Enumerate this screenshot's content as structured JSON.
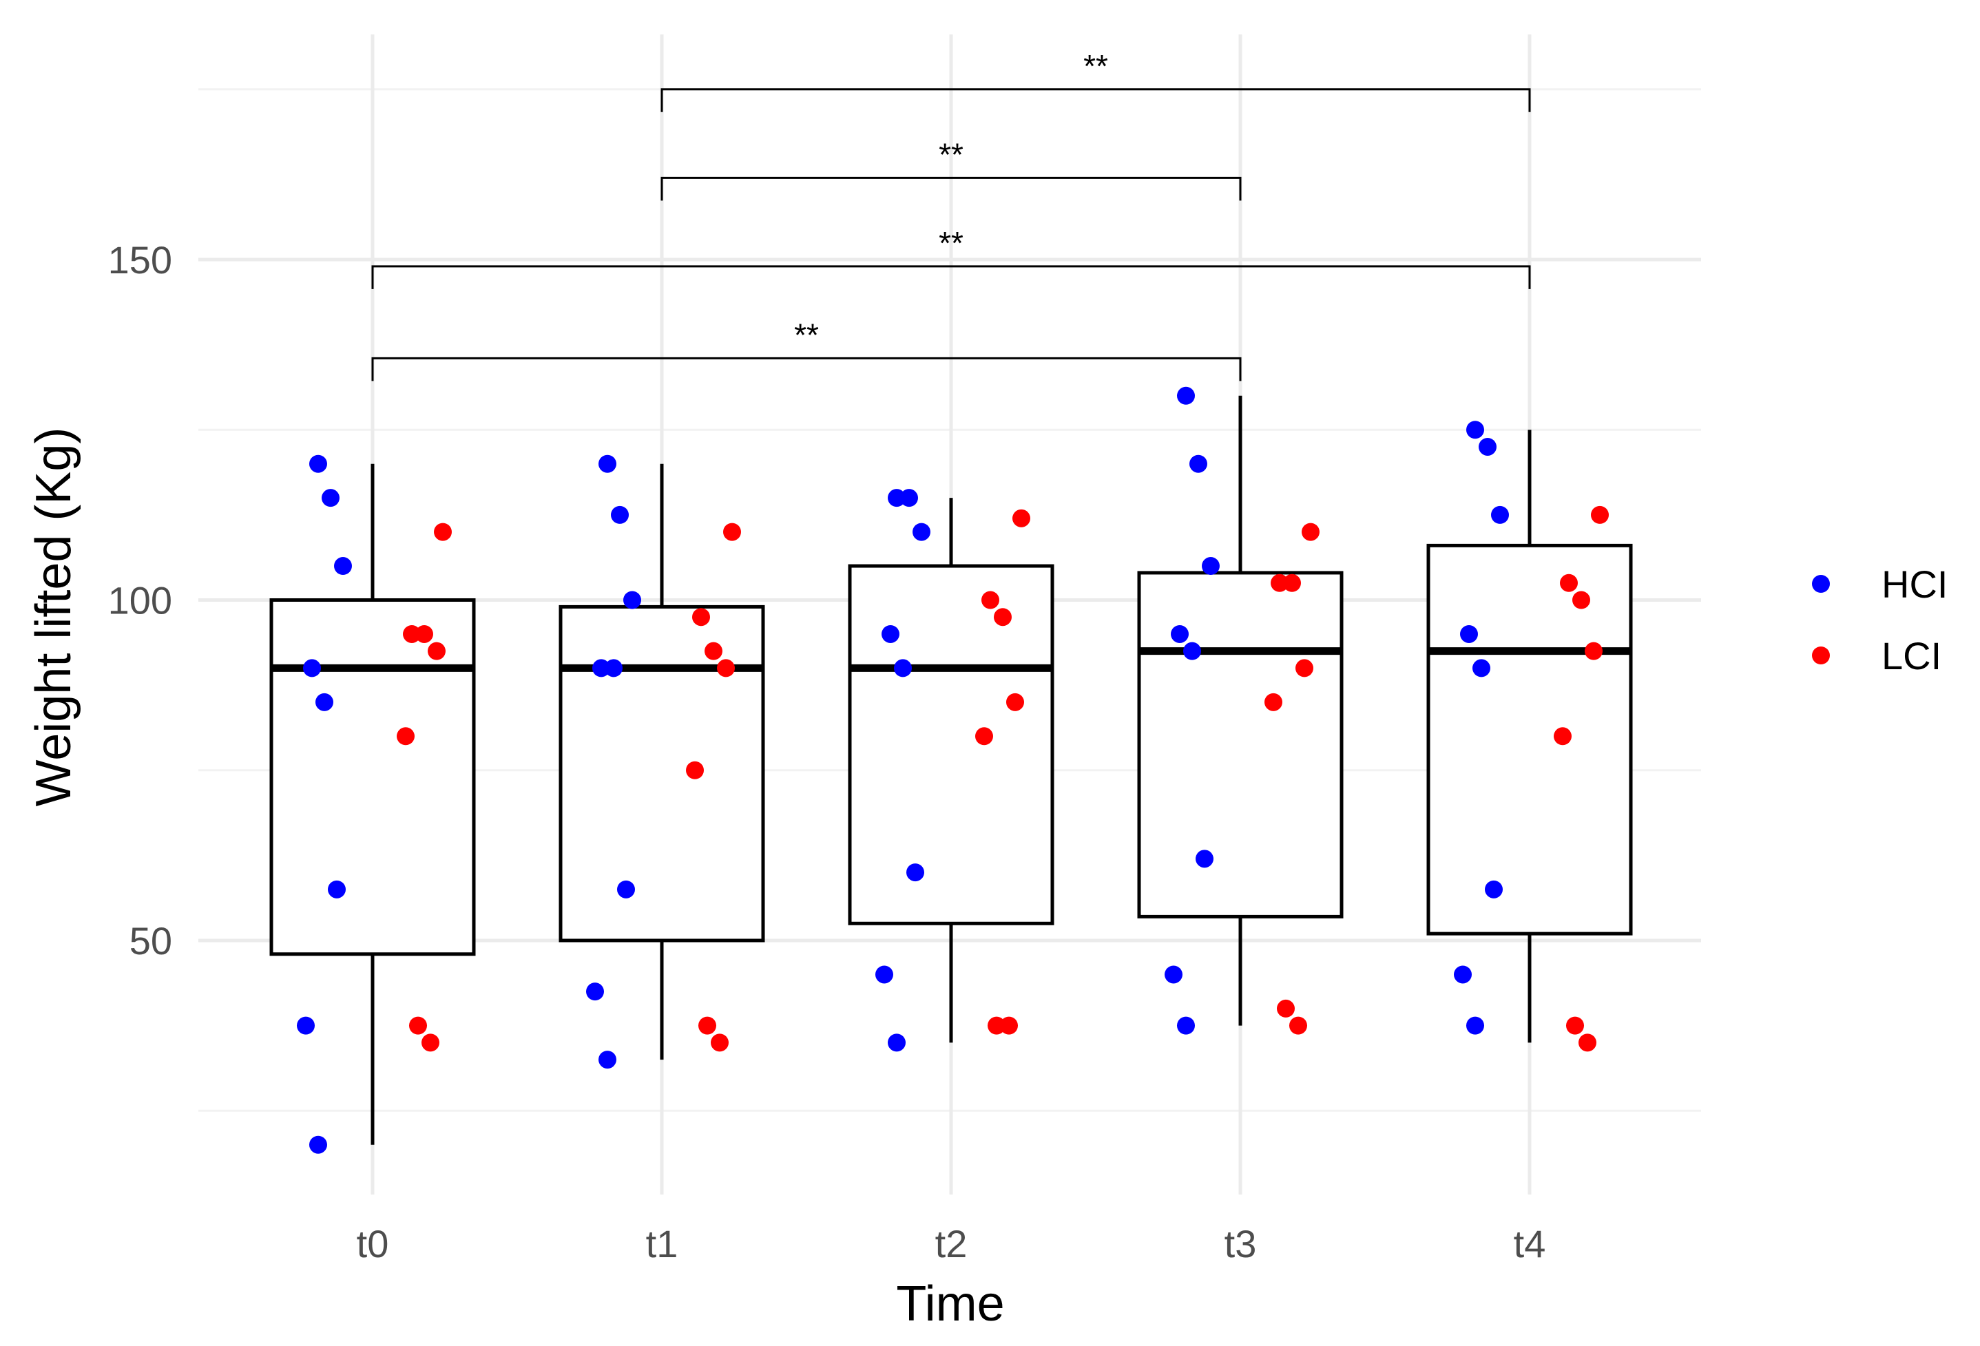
{
  "chart_data": {
    "type": "box",
    "xlabel": "Time",
    "ylabel": "Weight lifted (Kg)",
    "categories": [
      "t0",
      "t1",
      "t2",
      "t3",
      "t4"
    ],
    "y_ticks": [
      50,
      100,
      150
    ],
    "ylim": [
      13,
      180
    ],
    "grid": true,
    "legend": {
      "placement": "right",
      "entries": [
        {
          "name": "HCI",
          "color": "#0000ff"
        },
        {
          "name": "LCI",
          "color": "#ff0000"
        }
      ]
    },
    "boxes": [
      {
        "category": "t0",
        "whisker_low": 20,
        "q1": 48,
        "median": 90,
        "q3": 100,
        "whisker_high": 120
      },
      {
        "category": "t1",
        "whisker_low": 32.5,
        "q1": 50,
        "median": 90,
        "q3": 99,
        "whisker_high": 120
      },
      {
        "category": "t2",
        "whisker_low": 35,
        "q1": 52.5,
        "median": 90,
        "q3": 105,
        "whisker_high": 115
      },
      {
        "category": "t3",
        "whisker_low": 37.5,
        "q1": 53.5,
        "median": 92.5,
        "q3": 104,
        "whisker_high": 130
      },
      {
        "category": "t4",
        "whisker_low": 35,
        "q1": 51,
        "median": 92.5,
        "q3": 108,
        "whisker_high": 125
      }
    ],
    "series": [
      {
        "name": "HCI",
        "color": "#0000ff",
        "points": [
          {
            "x": "t0",
            "y": 120
          },
          {
            "x": "t0",
            "y": 115
          },
          {
            "x": "t0",
            "y": 105
          },
          {
            "x": "t0",
            "y": 90
          },
          {
            "x": "t0",
            "y": 85
          },
          {
            "x": "t0",
            "y": 57.5
          },
          {
            "x": "t0",
            "y": 37.5
          },
          {
            "x": "t0",
            "y": 20
          },
          {
            "x": "t1",
            "y": 120
          },
          {
            "x": "t1",
            "y": 112.5
          },
          {
            "x": "t1",
            "y": 100
          },
          {
            "x": "t1",
            "y": 90
          },
          {
            "x": "t1",
            "y": 90
          },
          {
            "x": "t1",
            "y": 57.5
          },
          {
            "x": "t1",
            "y": 42.5
          },
          {
            "x": "t1",
            "y": 32.5
          },
          {
            "x": "t2",
            "y": 115
          },
          {
            "x": "t2",
            "y": 115
          },
          {
            "x": "t2",
            "y": 110
          },
          {
            "x": "t2",
            "y": 95
          },
          {
            "x": "t2",
            "y": 90
          },
          {
            "x": "t2",
            "y": 60
          },
          {
            "x": "t2",
            "y": 45
          },
          {
            "x": "t2",
            "y": 35
          },
          {
            "x": "t3",
            "y": 130
          },
          {
            "x": "t3",
            "y": 120
          },
          {
            "x": "t3",
            "y": 105
          },
          {
            "x": "t3",
            "y": 95
          },
          {
            "x": "t3",
            "y": 92.5
          },
          {
            "x": "t3",
            "y": 62
          },
          {
            "x": "t3",
            "y": 45
          },
          {
            "x": "t3",
            "y": 37.5
          },
          {
            "x": "t4",
            "y": 125
          },
          {
            "x": "t4",
            "y": 122.5
          },
          {
            "x": "t4",
            "y": 112.5
          },
          {
            "x": "t4",
            "y": 95
          },
          {
            "x": "t4",
            "y": 90
          },
          {
            "x": "t4",
            "y": 57.5
          },
          {
            "x": "t4",
            "y": 45
          },
          {
            "x": "t4",
            "y": 37.5
          }
        ]
      },
      {
        "name": "LCI",
        "color": "#ff0000",
        "points": [
          {
            "x": "t0",
            "y": 110
          },
          {
            "x": "t0",
            "y": 95
          },
          {
            "x": "t0",
            "y": 95
          },
          {
            "x": "t0",
            "y": 92.5
          },
          {
            "x": "t0",
            "y": 80
          },
          {
            "x": "t0",
            "y": 37.5
          },
          {
            "x": "t0",
            "y": 35
          },
          {
            "x": "t1",
            "y": 110
          },
          {
            "x": "t1",
            "y": 97.5
          },
          {
            "x": "t1",
            "y": 92.5
          },
          {
            "x": "t1",
            "y": 90
          },
          {
            "x": "t1",
            "y": 75
          },
          {
            "x": "t1",
            "y": 37.5
          },
          {
            "x": "t1",
            "y": 35
          },
          {
            "x": "t2",
            "y": 112
          },
          {
            "x": "t2",
            "y": 100
          },
          {
            "x": "t2",
            "y": 97.5
          },
          {
            "x": "t2",
            "y": 85
          },
          {
            "x": "t2",
            "y": 80
          },
          {
            "x": "t2",
            "y": 37.5
          },
          {
            "x": "t2",
            "y": 37.5
          },
          {
            "x": "t3",
            "y": 110
          },
          {
            "x": "t3",
            "y": 102.5
          },
          {
            "x": "t3",
            "y": 102.5
          },
          {
            "x": "t3",
            "y": 90
          },
          {
            "x": "t3",
            "y": 85
          },
          {
            "x": "t3",
            "y": 40
          },
          {
            "x": "t3",
            "y": 37.5
          },
          {
            "x": "t4",
            "y": 112.5
          },
          {
            "x": "t4",
            "y": 102.5
          },
          {
            "x": "t4",
            "y": 100
          },
          {
            "x": "t4",
            "y": 92.5
          },
          {
            "x": "t4",
            "y": 80
          },
          {
            "x": "t4",
            "y": 37.5
          },
          {
            "x": "t4",
            "y": 35
          }
        ]
      }
    ],
    "significance": [
      {
        "from": "t1",
        "to": "t4",
        "y": 175,
        "label": "**"
      },
      {
        "from": "t1",
        "to": "t3",
        "y": 162,
        "label": "**"
      },
      {
        "from": "t0",
        "to": "t4",
        "y": 149,
        "label": "**"
      },
      {
        "from": "t0",
        "to": "t3",
        "y": 135.5,
        "label": "**"
      }
    ]
  }
}
